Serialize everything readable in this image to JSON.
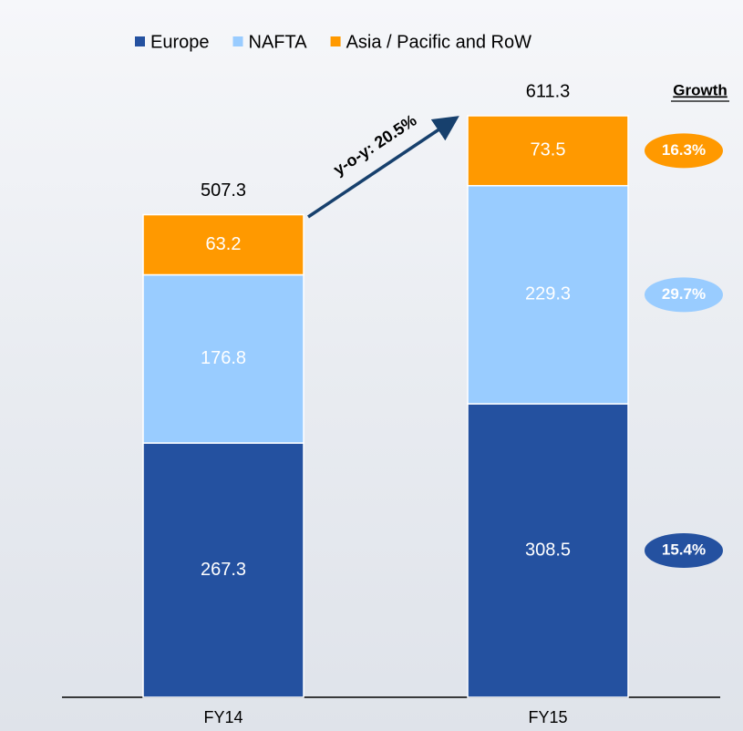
{
  "chart_data": {
    "type": "stacked-bar",
    "categories": [
      "FY14",
      "FY15"
    ],
    "series": [
      {
        "name": "Europe",
        "color": "#2451a0",
        "label_color": "#ffffff",
        "values": [
          267.3,
          308.5
        ]
      },
      {
        "name": "NAFTA",
        "color": "#99ccff",
        "label_color": "#ffffff",
        "values": [
          176.8,
          229.3
        ]
      },
      {
        "name": "Asia / Pacific and RoW",
        "color": "#ff9900",
        "label_color": "#ffffff",
        "values": [
          63.2,
          73.5
        ]
      }
    ],
    "totals": [
      507.3,
      611.3
    ],
    "annotation": "y-o-y: 20.5%",
    "growth": {
      "label": "Growth",
      "values": [
        15.4,
        29.7,
        16.3
      ],
      "value_labels": [
        "15.4%",
        "29.7%",
        "16.3%"
      ]
    }
  }
}
